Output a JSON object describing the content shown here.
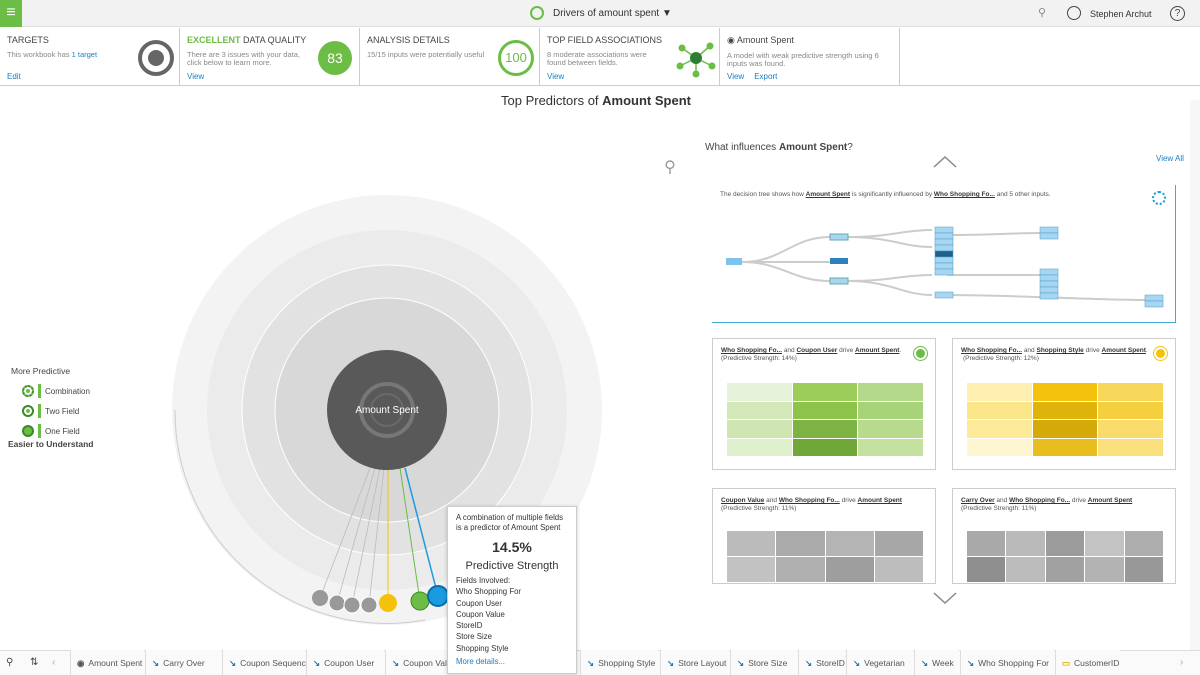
{
  "header": {
    "title": "Drivers of amount spent",
    "user": "Stephen Archut",
    "help": "?"
  },
  "cards": [
    {
      "title": "TARGETS",
      "text": [
        "This workbook has ",
        "1 target"
      ],
      "actions": [
        "Edit"
      ]
    },
    {
      "title": [
        "EXCELLENT",
        " DATA QUALITY"
      ],
      "text": [
        "There are 3 issues with your data, click below to learn more."
      ],
      "badge": "83",
      "actions": [
        "View"
      ]
    },
    {
      "title": "ANALYSIS DETAILS",
      "text": [
        "15/15 inputs were potentially useful"
      ],
      "badge": "100",
      "actions": []
    },
    {
      "title": "TOP FIELD ASSOCIATIONS",
      "text": [
        "8 moderate associations were found between fields."
      ],
      "actions": [
        "View"
      ]
    },
    {
      "title": "Amount Spent",
      "text": [
        "A model with weak predictive strength using 6 inputs was found."
      ],
      "actions": [
        "View",
        "Export"
      ]
    }
  ],
  "main_title": [
    "Top Predictors of ",
    "Amount Spent"
  ],
  "legend": {
    "top": "More Predictive",
    "items": [
      "Combination",
      "Two Field",
      "One Field"
    ],
    "bottom": "Easier to Understand"
  },
  "center_label": "Amount Spent",
  "tooltip": {
    "text": "A combination of multiple fields is a predictor of Amount Spent",
    "value": "14.5%",
    "label": "Predictive Strength",
    "fields_heading": "Fields Involved:",
    "fields": [
      "Who Shopping For",
      "Coupon User",
      "Coupon Value",
      "StoreID",
      "Store Size",
      "Shopping Style"
    ],
    "link": "More details..."
  },
  "right": {
    "heading": [
      "What influences ",
      "Amount Spent",
      "?"
    ],
    "view_all": "View All",
    "tree_text": [
      "The decision tree shows how ",
      "Amount Spent",
      " is significantly influenced by ",
      "Who Shopping Fo...",
      " and 5 other inputs."
    ],
    "tiles": [
      {
        "parts": [
          "Who Shopping Fo...",
          " and ",
          "Coupon User",
          " drive ",
          "Amount Spent",
          "."
        ],
        "sub": "(Predictive Strength: 14%)"
      },
      {
        "parts": [
          "Who Shopping Fo...",
          " and ",
          "Shopping Style",
          " drive ",
          "Amount Spent",
          "."
        ],
        "sub": "(Predictive Strength: 12%)"
      },
      {
        "parts": [
          "Coupon Value",
          " and ",
          "Who Shopping Fo...",
          " drive ",
          "Amount Spent"
        ],
        "sub": "(Predictive Strength: 11%)"
      },
      {
        "parts": [
          "Carry Over",
          " and ",
          "Who Shopping Fo...",
          " drive ",
          "Amount Spent"
        ],
        "sub": "(Predictive Strength: 11%)"
      }
    ]
  },
  "tabs": [
    "Amount Spent",
    "Carry Over",
    "Coupon Sequence",
    "Coupon User",
    "Coupon Value",
    "Shopping Style",
    "Store Layout",
    "Store Size",
    "StoreID",
    "Vegetarian",
    "Week",
    "Who Shopping For",
    "CustomerID"
  ]
}
